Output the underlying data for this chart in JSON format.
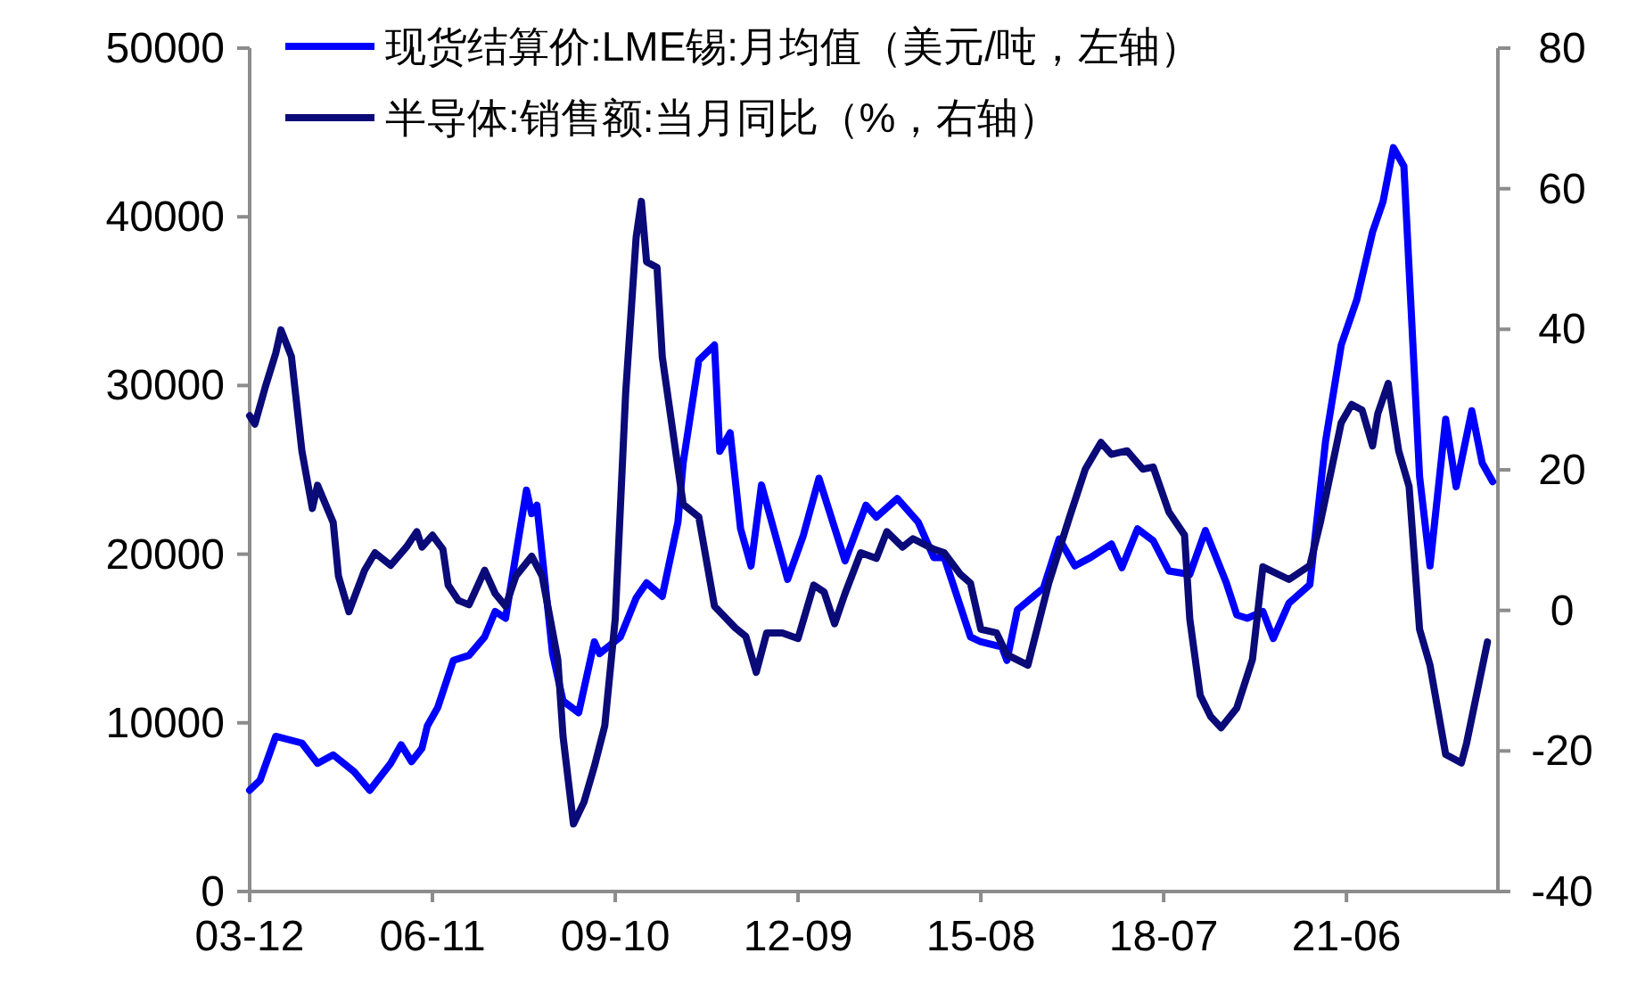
{
  "chart_data": {
    "type": "line",
    "legend": "top left",
    "line_style": "solid",
    "xlim": [
      "2003-12",
      "2023-11"
    ],
    "xticks": [
      {
        "value": "2003-12",
        "label": "03-12"
      },
      {
        "value": "2006-11",
        "label": "06-11"
      },
      {
        "value": "2009-10",
        "label": "09-10"
      },
      {
        "value": "2012-09",
        "label": "12-09"
      },
      {
        "value": "2015-08",
        "label": "15-08"
      },
      {
        "value": "2018-07",
        "label": "18-07"
      },
      {
        "value": "2021-06",
        "label": "21-06"
      }
    ],
    "ylim": [
      0,
      50000
    ],
    "yticks": [
      0,
      10000,
      20000,
      30000,
      40000,
      50000
    ],
    "y2lim": [
      -40,
      80
    ],
    "y2ticks": [
      -40,
      -20,
      0,
      20,
      40,
      60,
      80
    ],
    "series": [
      {
        "name": "现货结算价:LME锡:月均值（美元/吨，左轴）",
        "color": "#0000ff",
        "x": [
          "2003-12",
          "2004-02",
          "2004-05",
          "2004-10",
          "2005-01",
          "2005-04",
          "2005-08",
          "2005-11",
          "2006-03",
          "2006-05",
          "2006-07",
          "2006-09",
          "2006-10",
          "2006-12",
          "2007-03",
          "2007-06",
          "2007-09",
          "2007-11",
          "2008-01",
          "2008-05",
          "2008-06",
          "2008-07",
          "2008-10",
          "2008-12",
          "2009-03",
          "2009-06",
          "2009-07",
          "2009-11",
          "2010-02",
          "2010-04",
          "2010-07",
          "2010-10",
          "2010-11",
          "2011-02",
          "2011-05",
          "2011-06",
          "2011-08",
          "2011-10",
          "2011-12",
          "2012-02",
          "2012-07",
          "2012-10",
          "2013-01",
          "2013-06",
          "2013-10",
          "2013-12",
          "2014-04",
          "2014-08",
          "2014-11",
          "2015-01",
          "2015-06",
          "2015-08",
          "2015-12",
          "2016-01",
          "2016-03",
          "2016-08",
          "2016-11",
          "2017-02",
          "2017-05",
          "2017-09",
          "2017-11",
          "2018-02",
          "2018-05",
          "2018-08",
          "2018-12",
          "2019-03",
          "2019-07",
          "2019-09",
          "2019-11",
          "2020-02",
          "2020-04",
          "2020-07",
          "2020-11",
          "2021-02",
          "2021-05",
          "2021-08",
          "2021-11",
          "2022-01",
          "2022-03",
          "2022-05",
          "2022-08",
          "2022-10",
          "2023-01",
          "2023-03",
          "2023-06",
          "2023-08",
          "2023-10"
        ],
        "values": [
          6000,
          6600,
          9200,
          8800,
          7600,
          8100,
          7100,
          6000,
          7600,
          8700,
          7700,
          8500,
          9800,
          10900,
          13700,
          14000,
          15100,
          16600,
          16200,
          23800,
          22400,
          22900,
          14100,
          11300,
          10600,
          14800,
          14100,
          15100,
          17400,
          18300,
          17500,
          21900,
          25400,
          31500,
          32400,
          26100,
          27200,
          21500,
          19300,
          24100,
          18500,
          21100,
          24500,
          19600,
          22900,
          22200,
          23300,
          21900,
          19800,
          19800,
          15100,
          14800,
          14500,
          13700,
          16700,
          18000,
          20900,
          19300,
          19800,
          20600,
          19200,
          21500,
          20800,
          19000,
          18800,
          21400,
          18300,
          16400,
          16200,
          16600,
          15000,
          17100,
          18200,
          26700,
          32400,
          35100,
          39100,
          40900,
          44100,
          43000,
          24600,
          19300,
          28000,
          24000,
          28500,
          25400,
          24300
        ]
      },
      {
        "name": "半导体:销售额:当月同比（%，右轴）",
        "color": "#0a0a78",
        "axis": "y2",
        "x": [
          "2003-12",
          "2004-01",
          "2004-03",
          "2004-05",
          "2004-06",
          "2004-08",
          "2004-10",
          "2004-12",
          "2005-01",
          "2005-04",
          "2005-05",
          "2005-07",
          "2005-10",
          "2005-12",
          "2006-03",
          "2006-06",
          "2006-08",
          "2006-09",
          "2006-11",
          "2007-01",
          "2007-02",
          "2007-04",
          "2007-06",
          "2007-09",
          "2007-11",
          "2008-01",
          "2008-03",
          "2008-06",
          "2008-08",
          "2008-11",
          "2008-12",
          "2009-02",
          "2009-04",
          "2009-06",
          "2009-08",
          "2009-10",
          "2009-12",
          "2010-02",
          "2010-03",
          "2010-04",
          "2010-06",
          "2010-07",
          "2010-11",
          "2011-02",
          "2011-05",
          "2011-09",
          "2011-11",
          "2012-01",
          "2012-03",
          "2012-06",
          "2012-09",
          "2012-12",
          "2013-02",
          "2013-04",
          "2013-06",
          "2013-09",
          "2013-12",
          "2014-02",
          "2014-05",
          "2014-07",
          "2014-11",
          "2015-01",
          "2015-04",
          "2015-06",
          "2015-08",
          "2015-11",
          "2016-01",
          "2016-05",
          "2016-09",
          "2017-01",
          "2017-04",
          "2017-07",
          "2017-09",
          "2017-12",
          "2018-03",
          "2018-05",
          "2018-08",
          "2018-11",
          "2018-12",
          "2019-02",
          "2019-04",
          "2019-06",
          "2019-09",
          "2019-12",
          "2020-02",
          "2020-07",
          "2020-11",
          "2021-01",
          "2021-05",
          "2021-07",
          "2021-09",
          "2021-11",
          "2021-12",
          "2022-02",
          "2022-04",
          "2022-06",
          "2022-08",
          "2022-10",
          "2023-01",
          "2023-04",
          "2023-05",
          "2023-09"
        ],
        "values": [
          27.7,
          26.5,
          31.8,
          36.6,
          39.9,
          36.1,
          22.7,
          14.5,
          17.8,
          12.5,
          4.9,
          -0.2,
          5.7,
          8.2,
          6.4,
          9.0,
          11.2,
          9.0,
          10.7,
          8.7,
          3.6,
          1.4,
          0.8,
          5.7,
          2.4,
          0.6,
          4.9,
          7.7,
          4.9,
          -7.0,
          -17.9,
          -30.4,
          -27.3,
          -22.2,
          -16.4,
          -1.2,
          31.0,
          53.1,
          58.2,
          49.6,
          48.8,
          36.1,
          15.1,
          13.3,
          0.6,
          -2.5,
          -3.7,
          -8.8,
          -3.2,
          -3.2,
          -4.0,
          3.6,
          2.6,
          -1.9,
          2.4,
          8.2,
          7.4,
          11.2,
          9.0,
          10.2,
          8.7,
          8.2,
          5.2,
          3.9,
          -2.7,
          -3.2,
          -6.3,
          -7.8,
          3.9,
          13.3,
          20.1,
          23.9,
          22.2,
          22.7,
          20.1,
          20.4,
          14.0,
          10.7,
          -1.2,
          -12.1,
          -15.1,
          -16.7,
          -13.9,
          -7.0,
          6.2,
          4.4,
          6.4,
          12.5,
          26.7,
          29.3,
          28.5,
          23.4,
          28.0,
          32.3,
          22.7,
          17.6,
          -2.7,
          -7.8,
          -20.5,
          -21.7,
          -18.9,
          -4.5
        ]
      }
    ]
  }
}
